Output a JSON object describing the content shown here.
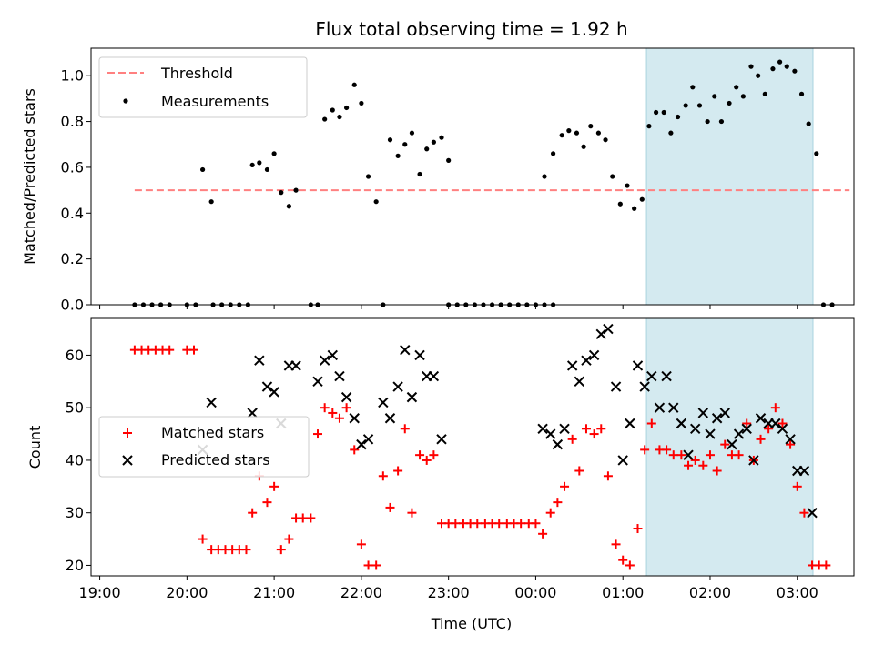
{
  "chart_data": [
    {
      "type": "scatter",
      "title": "Flux total observing time = 1.92 h",
      "ylabel": "Matched/Predicted stars",
      "xlabel": "",
      "ylim": [
        0,
        1.12
      ],
      "yticks": [
        "0.0",
        "0.2",
        "0.4",
        "0.6",
        "0.8",
        "1.0"
      ],
      "xlim_hours": [
        18.9,
        27.65
      ],
      "highlight_span_hours": [
        25.27,
        27.18
      ],
      "highlight_color": "#d4eaf0",
      "legend_position": "top-left",
      "threshold": {
        "name": "Threshold",
        "y": 0.5,
        "x_range_hours": [
          19.4,
          27.6
        ],
        "color": "#ff8080",
        "style": "dashed"
      },
      "series": [
        {
          "name": "Measurements",
          "color": "#000000",
          "marker": "dot",
          "points": [
            [
              19.4,
              0
            ],
            [
              19.5,
              0
            ],
            [
              19.6,
              0
            ],
            [
              19.7,
              0
            ],
            [
              19.8,
              0
            ],
            [
              20.0,
              0
            ],
            [
              20.1,
              0
            ],
            [
              20.3,
              0
            ],
            [
              20.4,
              0
            ],
            [
              20.5,
              0
            ],
            [
              20.6,
              0
            ],
            [
              20.7,
              0
            ],
            [
              20.18,
              0.59
            ],
            [
              20.28,
              0.45
            ],
            [
              20.75,
              0.61
            ],
            [
              20.83,
              0.62
            ],
            [
              20.92,
              0.59
            ],
            [
              21.0,
              0.66
            ],
            [
              21.08,
              0.49
            ],
            [
              21.17,
              0.43
            ],
            [
              21.25,
              0.5
            ],
            [
              21.42,
              0
            ],
            [
              21.5,
              0
            ],
            [
              21.58,
              0.81
            ],
            [
              21.67,
              0.85
            ],
            [
              21.75,
              0.82
            ],
            [
              21.83,
              0.86
            ],
            [
              21.92,
              0.96
            ],
            [
              22.0,
              0.88
            ],
            [
              22.08,
              0.56
            ],
            [
              22.17,
              0.45
            ],
            [
              22.25,
              0
            ],
            [
              22.33,
              0.72
            ],
            [
              22.42,
              0.65
            ],
            [
              22.5,
              0.7
            ],
            [
              22.58,
              0.75
            ],
            [
              22.67,
              0.57
            ],
            [
              22.75,
              0.68
            ],
            [
              22.83,
              0.71
            ],
            [
              22.92,
              0.73
            ],
            [
              23.0,
              0.63
            ],
            [
              23.0,
              0
            ],
            [
              23.1,
              0
            ],
            [
              23.2,
              0
            ],
            [
              23.3,
              0
            ],
            [
              23.4,
              0
            ],
            [
              23.5,
              0
            ],
            [
              23.6,
              0
            ],
            [
              23.7,
              0
            ],
            [
              23.8,
              0
            ],
            [
              23.9,
              0
            ],
            [
              24.0,
              0
            ],
            [
              24.1,
              0
            ],
            [
              24.2,
              0
            ],
            [
              24.1,
              0.56
            ],
            [
              24.2,
              0.66
            ],
            [
              24.3,
              0.74
            ],
            [
              24.38,
              0.76
            ],
            [
              24.47,
              0.75
            ],
            [
              24.55,
              0.69
            ],
            [
              24.63,
              0.78
            ],
            [
              24.72,
              0.75
            ],
            [
              24.8,
              0.72
            ],
            [
              24.88,
              0.56
            ],
            [
              24.97,
              0.44
            ],
            [
              25.05,
              0.52
            ],
            [
              25.13,
              0.42
            ],
            [
              25.22,
              0.46
            ],
            [
              25.3,
              0.78
            ],
            [
              25.38,
              0.84
            ],
            [
              25.47,
              0.84
            ],
            [
              25.55,
              0.75
            ],
            [
              25.63,
              0.82
            ],
            [
              25.72,
              0.87
            ],
            [
              25.8,
              0.95
            ],
            [
              25.88,
              0.87
            ],
            [
              25.97,
              0.8
            ],
            [
              26.05,
              0.91
            ],
            [
              26.13,
              0.8
            ],
            [
              26.22,
              0.88
            ],
            [
              26.3,
              0.95
            ],
            [
              26.38,
              0.91
            ],
            [
              26.47,
              1.04
            ],
            [
              26.55,
              1.0
            ],
            [
              26.63,
              0.92
            ],
            [
              26.72,
              1.03
            ],
            [
              26.8,
              1.06
            ],
            [
              26.88,
              1.04
            ],
            [
              26.97,
              1.02
            ],
            [
              27.05,
              0.92
            ],
            [
              27.13,
              0.79
            ],
            [
              27.22,
              0.66
            ],
            [
              27.3,
              0
            ],
            [
              27.4,
              0
            ]
          ]
        }
      ]
    },
    {
      "type": "scatter",
      "title": "",
      "ylabel": "Count",
      "xlabel": "Time (UTC)",
      "ylim": [
        18,
        67
      ],
      "yticks": [
        "20",
        "30",
        "40",
        "50",
        "60"
      ],
      "xlim_hours": [
        18.9,
        27.65
      ],
      "xticks": [
        "19:00",
        "20:00",
        "21:00",
        "22:00",
        "23:00",
        "00:00",
        "01:00",
        "02:00",
        "03:00"
      ],
      "highlight_span_hours": [
        25.27,
        27.18
      ],
      "highlight_color": "#d4eaf0",
      "legend_position": "center-left",
      "series": [
        {
          "name": "Matched stars",
          "color": "#ff0000",
          "marker": "plus",
          "points": [
            [
              19.4,
              61
            ],
            [
              19.48,
              61
            ],
            [
              19.56,
              61
            ],
            [
              19.64,
              61
            ],
            [
              19.72,
              61
            ],
            [
              19.8,
              61
            ],
            [
              20.0,
              61
            ],
            [
              20.08,
              61
            ],
            [
              20.18,
              25
            ],
            [
              20.28,
              23
            ],
            [
              20.36,
              23
            ],
            [
              20.44,
              23
            ],
            [
              20.52,
              23
            ],
            [
              20.6,
              23
            ],
            [
              20.68,
              23
            ],
            [
              20.75,
              30
            ],
            [
              20.83,
              37
            ],
            [
              20.92,
              32
            ],
            [
              21.0,
              35
            ],
            [
              21.08,
              23
            ],
            [
              21.17,
              25
            ],
            [
              21.25,
              29
            ],
            [
              21.33,
              29
            ],
            [
              21.42,
              29
            ],
            [
              21.5,
              45
            ],
            [
              21.58,
              50
            ],
            [
              21.67,
              49
            ],
            [
              21.75,
              48
            ],
            [
              21.83,
              50
            ],
            [
              21.92,
              42
            ],
            [
              22.0,
              24
            ],
            [
              22.08,
              20
            ],
            [
              22.17,
              20
            ],
            [
              22.25,
              37
            ],
            [
              22.33,
              31
            ],
            [
              22.42,
              38
            ],
            [
              22.5,
              46
            ],
            [
              22.58,
              30
            ],
            [
              22.67,
              41
            ],
            [
              22.75,
              40
            ],
            [
              22.83,
              41
            ],
            [
              22.92,
              28
            ],
            [
              23.0,
              28
            ],
            [
              23.08,
              28
            ],
            [
              23.17,
              28
            ],
            [
              23.25,
              28
            ],
            [
              23.33,
              28
            ],
            [
              23.42,
              28
            ],
            [
              23.5,
              28
            ],
            [
              23.58,
              28
            ],
            [
              23.67,
              28
            ],
            [
              23.75,
              28
            ],
            [
              23.83,
              28
            ],
            [
              23.92,
              28
            ],
            [
              24.0,
              28
            ],
            [
              24.08,
              26
            ],
            [
              24.17,
              30
            ],
            [
              24.25,
              32
            ],
            [
              24.33,
              35
            ],
            [
              24.42,
              44
            ],
            [
              24.5,
              38
            ],
            [
              24.58,
              46
            ],
            [
              24.67,
              45
            ],
            [
              24.75,
              46
            ],
            [
              24.83,
              37
            ],
            [
              24.92,
              24
            ],
            [
              25.0,
              21
            ],
            [
              25.08,
              20
            ],
            [
              25.17,
              27
            ],
            [
              25.25,
              42
            ],
            [
              25.33,
              47
            ],
            [
              25.42,
              42
            ],
            [
              25.5,
              42
            ],
            [
              25.58,
              41
            ],
            [
              25.67,
              41
            ],
            [
              25.75,
              39
            ],
            [
              25.83,
              40
            ],
            [
              25.92,
              39
            ],
            [
              26.0,
              41
            ],
            [
              26.08,
              38
            ],
            [
              26.17,
              43
            ],
            [
              26.25,
              41
            ],
            [
              26.33,
              41
            ],
            [
              26.42,
              47
            ],
            [
              26.5,
              40
            ],
            [
              26.58,
              44
            ],
            [
              26.67,
              46
            ],
            [
              26.75,
              50
            ],
            [
              26.83,
              47
            ],
            [
              26.92,
              43
            ],
            [
              27.0,
              35
            ],
            [
              27.08,
              30
            ],
            [
              27.17,
              20
            ],
            [
              27.25,
              20
            ],
            [
              27.33,
              20
            ]
          ]
        },
        {
          "name": "Predicted stars",
          "color": "#000000",
          "marker": "cross",
          "points": [
            [
              20.18,
              42
            ],
            [
              20.28,
              51
            ],
            [
              20.75,
              49
            ],
            [
              20.83,
              59
            ],
            [
              20.92,
              54
            ],
            [
              21.0,
              53
            ],
            [
              21.08,
              47
            ],
            [
              21.17,
              58
            ],
            [
              21.25,
              58
            ],
            [
              21.5,
              55
            ],
            [
              21.58,
              59
            ],
            [
              21.67,
              60
            ],
            [
              21.75,
              56
            ],
            [
              21.83,
              52
            ],
            [
              21.92,
              48
            ],
            [
              22.0,
              43
            ],
            [
              22.08,
              44
            ],
            [
              22.25,
              51
            ],
            [
              22.33,
              48
            ],
            [
              22.42,
              54
            ],
            [
              22.5,
              61
            ],
            [
              22.58,
              52
            ],
            [
              22.67,
              60
            ],
            [
              22.75,
              56
            ],
            [
              22.83,
              56
            ],
            [
              22.92,
              44
            ],
            [
              24.08,
              46
            ],
            [
              24.17,
              45
            ],
            [
              24.25,
              43
            ],
            [
              24.33,
              46
            ],
            [
              24.42,
              58
            ],
            [
              24.5,
              55
            ],
            [
              24.58,
              59
            ],
            [
              24.67,
              60
            ],
            [
              24.75,
              64
            ],
            [
              24.83,
              65
            ],
            [
              24.92,
              54
            ],
            [
              25.0,
              40
            ],
            [
              25.08,
              47
            ],
            [
              25.17,
              58
            ],
            [
              25.25,
              54
            ],
            [
              25.33,
              56
            ],
            [
              25.42,
              50
            ],
            [
              25.5,
              56
            ],
            [
              25.58,
              50
            ],
            [
              25.67,
              47
            ],
            [
              25.75,
              41
            ],
            [
              25.83,
              46
            ],
            [
              25.92,
              49
            ],
            [
              26.0,
              45
            ],
            [
              26.08,
              48
            ],
            [
              26.17,
              49
            ],
            [
              26.25,
              43
            ],
            [
              26.33,
              45
            ],
            [
              26.42,
              46
            ],
            [
              26.5,
              40
            ],
            [
              26.58,
              48
            ],
            [
              26.67,
              47
            ],
            [
              26.75,
              47
            ],
            [
              26.83,
              46
            ],
            [
              26.92,
              44
            ],
            [
              27.0,
              38
            ],
            [
              27.08,
              38
            ],
            [
              27.17,
              30
            ]
          ]
        }
      ]
    }
  ]
}
